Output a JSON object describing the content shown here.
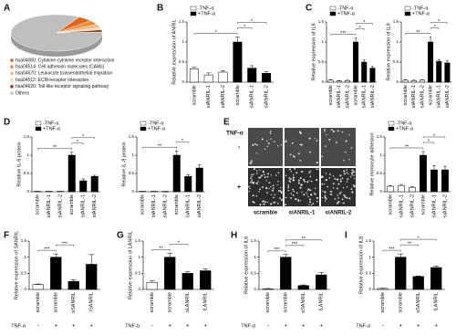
{
  "chart_data": [
    {
      "type": "pie",
      "label": "A",
      "categories": [
        "hsa04060: Cytokine-cytokine receptor interaction",
        "hsa04514: Cell adhesion molecules (CAMs)",
        "hsa04670: Leukocyte transendothelial migration",
        "hsa04512: ECM-receptor interaction",
        "hsa04620: Toll-like receptor signaling pathway",
        "Others"
      ],
      "values": [
        5,
        4,
        3,
        2,
        2,
        84
      ],
      "colors": [
        "#d9661f",
        "#f08a3c",
        "#f5b47c",
        "#fbd9b8",
        "#8c3b0f",
        "#bfbfbf"
      ]
    },
    {
      "type": "bar",
      "label": "B",
      "ylabel": "Relative expression of ANRIL",
      "categories": [
        "scramble",
        "siANRIL-1",
        "siANRIL-2",
        "scramble",
        "siANRIL-1",
        "siANRIL-2"
      ],
      "series": [
        {
          "name": "-TNF-α",
          "color": "#ffffff",
          "values": [
            0.33,
            0.18,
            0.25,
            null,
            null,
            null
          ],
          "errors": [
            0.04,
            0.05,
            0.04,
            null,
            null,
            null
          ]
        },
        {
          "name": "+TNF-α",
          "color": "#000000",
          "values": [
            null,
            null,
            null,
            1,
            0.35,
            0.22
          ],
          "errors": [
            null,
            null,
            null,
            0.12,
            0.06,
            0.04
          ]
        }
      ],
      "ylim": [
        0,
        1.5
      ],
      "yticks": [
        0,
        0.5,
        1,
        1.5
      ],
      "legend": true,
      "annotations": [
        {
          "text": "*",
          "from": 0,
          "to": 3
        },
        {
          "text": "*",
          "from": 3,
          "to": 4
        },
        {
          "text": "*",
          "from": 3,
          "to": 5
        }
      ]
    },
    {
      "type": "bar",
      "label": "C",
      "ylabel": "Relative expression of IL6",
      "categories": [
        "scramble",
        "siANRIL-1",
        "siANRIL-2",
        "scramble",
        "siANRIL-1",
        "siANRIL-2"
      ],
      "series": [
        {
          "name": "-TNF-α",
          "color": "#ffffff",
          "values": [
            0.05,
            0.03,
            0.04,
            null,
            null,
            null
          ],
          "errors": [
            0.01,
            0.01,
            0.01,
            null,
            null,
            null
          ]
        },
        {
          "name": "+TNF-α",
          "color": "#000000",
          "values": [
            null,
            null,
            null,
            1,
            0.5,
            0.35
          ],
          "errors": [
            null,
            null,
            null,
            0.1,
            0.05,
            0.04
          ]
        }
      ],
      "ylim": [
        0,
        1.5
      ],
      "yticks": [
        0,
        0.5,
        1,
        1.5
      ],
      "legend": true,
      "annotations": [
        {
          "text": "***",
          "from": 0,
          "to": 3
        },
        {
          "text": "*",
          "from": 3,
          "to": 4
        },
        {
          "text": "*",
          "from": 3,
          "to": 5
        }
      ]
    },
    {
      "type": "bar",
      "ylabel": "Relative expression of IL8",
      "categories": [
        "scramble",
        "siANRIL-1",
        "siANRIL-2",
        "scramble",
        "siANRIL-1",
        "siANRIL-2"
      ],
      "series": [
        {
          "name": "-TNF-α",
          "color": "#ffffff",
          "values": [
            0.05,
            0.04,
            0.05,
            null,
            null,
            null
          ],
          "errors": [
            0.01,
            0.01,
            0.01,
            null,
            null,
            null
          ]
        },
        {
          "name": "+TNF-α",
          "color": "#000000",
          "values": [
            null,
            null,
            null,
            1,
            0.52,
            0.48
          ],
          "errors": [
            null,
            null,
            null,
            0.12,
            0.04,
            0.05
          ]
        }
      ],
      "ylim": [
        0,
        1.5
      ],
      "yticks": [
        0,
        0.5,
        1,
        1.5
      ],
      "legend": true,
      "annotations": [
        {
          "text": "**",
          "from": 0,
          "to": 3
        },
        {
          "text": "*",
          "from": 3,
          "to": 4
        },
        {
          "text": "*",
          "from": 3,
          "to": 5
        }
      ]
    },
    {
      "type": "bar",
      "label": "D",
      "ylabel": "Relative IL-6 protein",
      "categories": [
        "scramble",
        "siANRIL-1",
        "siANRIL-2",
        "scramble",
        "siANRIL-1",
        "siANRIL-2"
      ],
      "series": [
        {
          "name": "-TNF-α",
          "color": "#ffffff",
          "values": [
            0.01,
            0.01,
            0.01,
            null,
            null,
            null
          ],
          "errors": [
            0,
            0,
            0,
            null,
            null,
            null
          ]
        },
        {
          "name": "+TNF-α",
          "color": "#000000",
          "values": [
            null,
            null,
            null,
            1,
            0.3,
            0.42
          ],
          "errors": [
            null,
            null,
            null,
            0.08,
            0.05,
            0.03
          ]
        }
      ],
      "ylim": [
        0,
        1.5
      ],
      "yticks": [
        0,
        0.5,
        1,
        1.5
      ],
      "legend": true,
      "annotations": [
        {
          "text": "**",
          "from": 0,
          "to": 3
        },
        {
          "text": "*",
          "from": 3,
          "to": 4
        },
        {
          "text": "*",
          "from": 3,
          "to": 5
        }
      ]
    },
    {
      "type": "bar",
      "ylabel": "Relative IL-8 protein",
      "categories": [
        "scramble",
        "siANRIL-1",
        "siANRIL-2",
        "scramble",
        "siANRIL-1",
        "siANRIL-2"
      ],
      "series": [
        {
          "name": "-TNF-α",
          "color": "#ffffff",
          "values": [
            0.01,
            0.01,
            0.01,
            null,
            null,
            null
          ],
          "errors": [
            0,
            0,
            0,
            null,
            null,
            null
          ]
        },
        {
          "name": "+TNF-α",
          "color": "#000000",
          "values": [
            null,
            null,
            null,
            1,
            0.42,
            0.65
          ],
          "errors": [
            null,
            null,
            null,
            0.12,
            0.05,
            0.08
          ]
        }
      ],
      "ylim": [
        0,
        1.5
      ],
      "yticks": [
        0,
        0.5,
        1,
        1.5
      ],
      "legend": true,
      "annotations": [
        {
          "text": "**",
          "from": 0,
          "to": 3
        },
        {
          "text": "*",
          "from": 3,
          "to": 4
        }
      ]
    },
    {
      "type": "bar",
      "label": "E",
      "ylabel": "Relative monocyte adhesion",
      "categories": [
        "scramble",
        "siANRIL-1",
        "siANRIL-2",
        "scramble",
        "siANRIL-1",
        "siANRIL-2"
      ],
      "series": [
        {
          "name": "-TNF-α",
          "color": "#ffffff",
          "values": [
            0.15,
            0.17,
            0.12,
            null,
            null,
            null
          ],
          "errors": [
            0.02,
            0.03,
            0.02,
            null,
            null,
            null
          ]
        },
        {
          "name": "+TNF-α",
          "color": "#000000",
          "values": [
            null,
            null,
            null,
            1,
            0.6,
            0.6
          ],
          "errors": [
            null,
            null,
            null,
            0.1,
            0.12,
            0.1
          ]
        }
      ],
      "ylim": [
        0,
        1.5
      ],
      "yticks": [
        0,
        0.5,
        1,
        1.5
      ],
      "legend": true,
      "annotations": [
        {
          "text": "**",
          "from": 0,
          "to": 3
        },
        {
          "text": "*",
          "from": 3,
          "to": 4
        },
        {
          "text": "*",
          "from": 3,
          "to": 5
        }
      ]
    },
    {
      "type": "bar",
      "label": "F",
      "ylabel": "Relative expression of SANRIL",
      "categories": [
        "scramble",
        "scramble",
        "sSANRIL",
        "lSANRIL"
      ],
      "values": [
        0.15,
        1,
        0.25,
        0.78
      ],
      "errors": [
        0.02,
        0.1,
        0.05,
        0.3
      ],
      "colors": [
        "#ffffff",
        "#000000",
        "#000000",
        "#000000"
      ],
      "ylim": [
        0,
        1.5
      ],
      "yticks": [
        0,
        0.5,
        1,
        1.5
      ],
      "tnf_label": "TNF-α",
      "tnf": [
        "-",
        "+",
        "+",
        "+"
      ],
      "annotations": [
        {
          "text": "***",
          "from": 0,
          "to": 1
        },
        {
          "text": "***",
          "from": 1,
          "to": 2
        }
      ]
    },
    {
      "type": "bar",
      "label": "G",
      "ylabel": "Relative expression of LANRIL",
      "categories": [
        "scramble",
        "scramble",
        "sLANRIL",
        "lLANRIL"
      ],
      "values": [
        0.22,
        1,
        0.5,
        0.58
      ],
      "errors": [
        0.05,
        0.12,
        0.05,
        0.06
      ],
      "colors": [
        "#ffffff",
        "#000000",
        "#000000",
        "#000000"
      ],
      "ylim": [
        0,
        1.5
      ],
      "yticks": [
        0,
        0.5,
        1,
        1.5
      ],
      "tnf_label": "TNF-α",
      "tnf": [
        "-",
        "+",
        "+",
        "+"
      ],
      "annotations": [
        {
          "text": "**",
          "from": 0,
          "to": 1
        },
        {
          "text": "*",
          "from": 1,
          "to": 2
        }
      ]
    },
    {
      "type": "bar",
      "label": "H",
      "ylabel": "Relative expression of IL6",
      "categories": [
        "scramble",
        "scramble",
        "sSANRIL",
        "lLANRIL"
      ],
      "values": [
        0.02,
        1,
        0.12,
        0.45
      ],
      "errors": [
        0.01,
        0.08,
        0.02,
        0.08
      ],
      "colors": [
        "#ffffff",
        "#000000",
        "#000000",
        "#000000"
      ],
      "ylim": [
        0,
        1.5
      ],
      "yticks": [
        0,
        0.5,
        1,
        1.5
      ],
      "tnf_label": "TNF-α",
      "tnf": [
        "-",
        "+",
        "+",
        "+"
      ],
      "annotations": [
        {
          "text": "***",
          "from": 0,
          "to": 1
        },
        {
          "text": "***",
          "from": 1,
          "to": 2
        },
        {
          "text": "**",
          "from": 1,
          "to": 3
        }
      ]
    },
    {
      "type": "bar",
      "label": "I",
      "ylabel": "Relative expression of IL8",
      "categories": [
        "scramble",
        "scramble",
        "sSANRIL",
        "lLANRIL"
      ],
      "values": [
        0.03,
        1,
        0.4,
        0.68
      ],
      "errors": [
        0.01,
        0.1,
        0.02,
        0.05
      ],
      "colors": [
        "#ffffff",
        "#000000",
        "#000000",
        "#000000"
      ],
      "ylim": [
        0,
        1.5
      ],
      "yticks": [
        0,
        0.5,
        1,
        1.5
      ],
      "tnf_label": "TNF-α",
      "tnf": [
        "-",
        "+",
        "+",
        "+"
      ],
      "annotations": [
        {
          "text": "***",
          "from": 0,
          "to": 1
        },
        {
          "text": "**",
          "from": 1,
          "to": 2
        },
        {
          "text": "*",
          "from": 1,
          "to": 3
        }
      ]
    }
  ],
  "micrograph": {
    "row_title": "TNF-α",
    "rows": [
      "-",
      "+"
    ],
    "columns": [
      "scramble",
      "siANRIL-1",
      "siANRIL-2"
    ]
  }
}
